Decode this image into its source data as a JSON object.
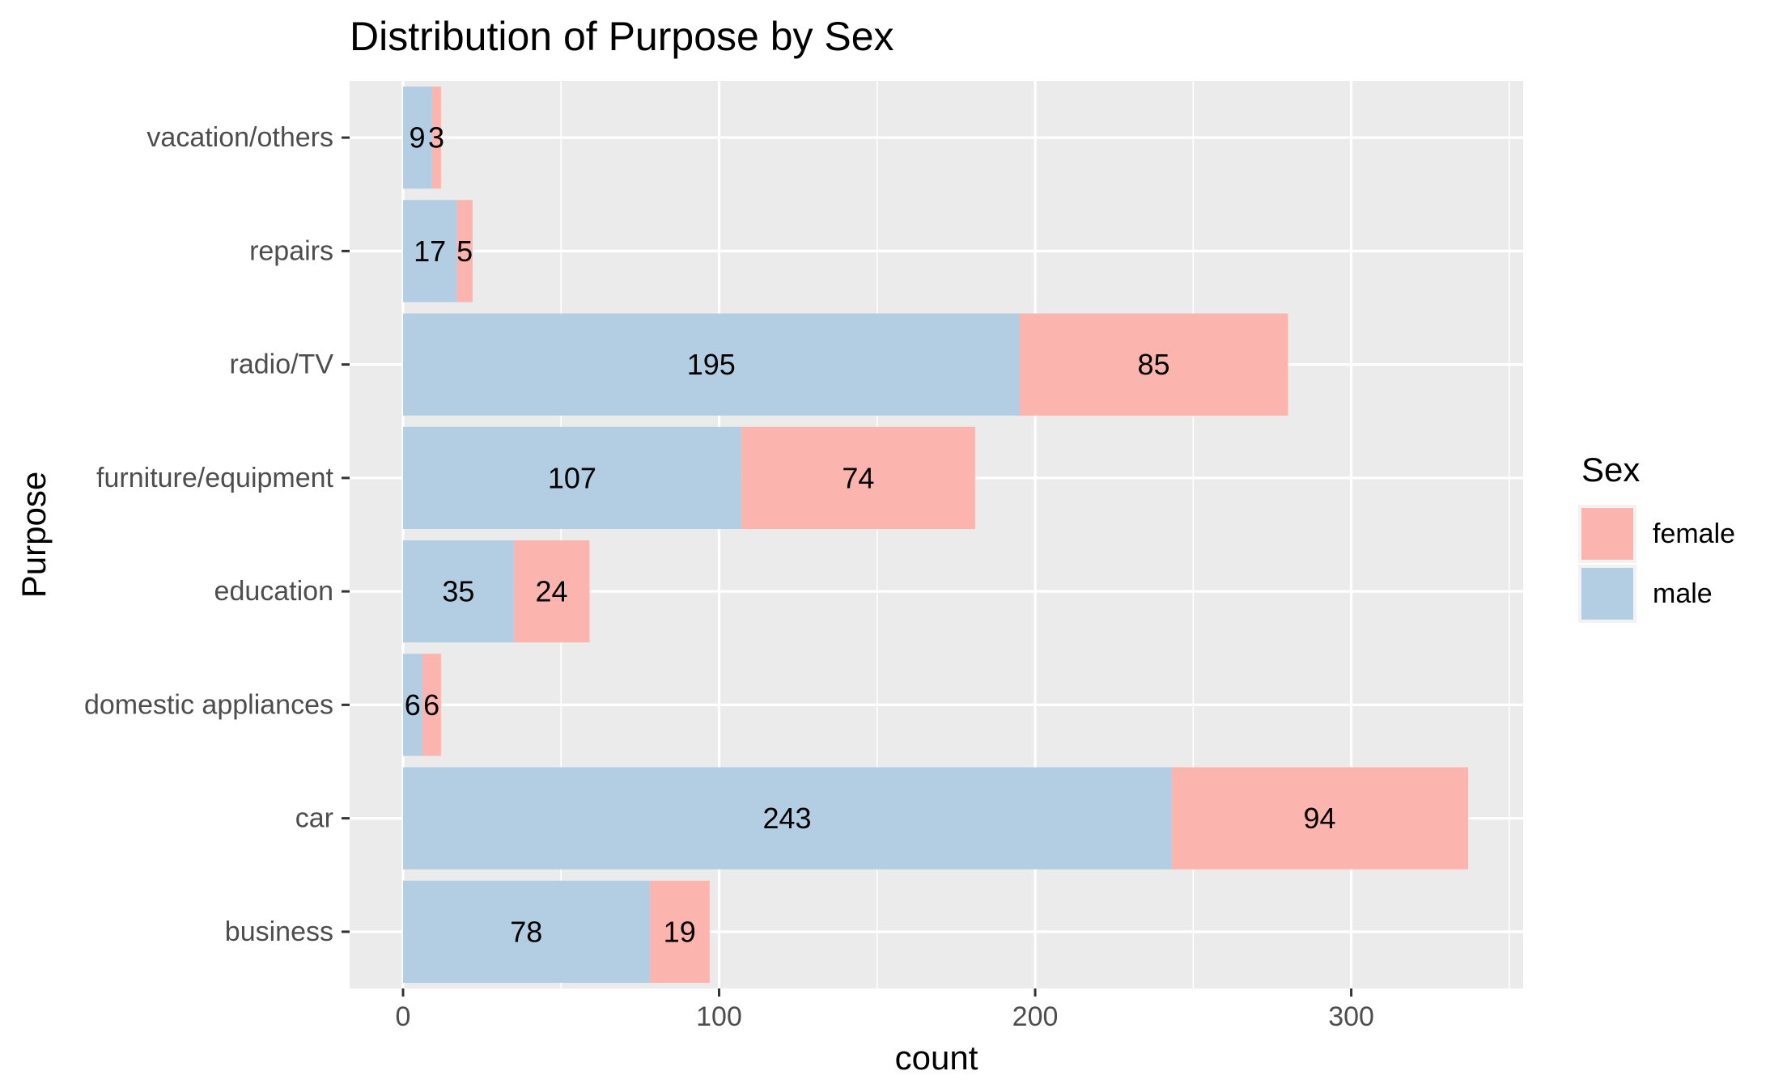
{
  "chart_data": {
    "type": "bar",
    "orientation": "horizontal",
    "stacked": true,
    "title": "Distribution of Purpose by Sex",
    "xlabel": "count",
    "ylabel": "Purpose",
    "xlim": [
      -16.9,
      354.4
    ],
    "xticks": [
      0,
      100,
      200,
      300
    ],
    "grid": true,
    "legend_position": "right",
    "legend_title": "Sex",
    "categories": [
      "business",
      "car",
      "domestic appliances",
      "education",
      "furniture/equipment",
      "radio/TV",
      "repairs",
      "vacation/others"
    ],
    "series": [
      {
        "name": "male",
        "color": "#b3cde3",
        "values": [
          78,
          243,
          6,
          35,
          107,
          195,
          17,
          9
        ]
      },
      {
        "name": "female",
        "color": "#fbb4ae",
        "values": [
          19,
          94,
          6,
          24,
          74,
          85,
          5,
          3
        ]
      }
    ],
    "legend": [
      {
        "name": "female",
        "color": "#fbb4ae"
      },
      {
        "name": "male",
        "color": "#b3cde3"
      }
    ],
    "colors": {
      "panel": "#ebebeb",
      "grid": "#ffffff",
      "tick": "#333333"
    }
  }
}
